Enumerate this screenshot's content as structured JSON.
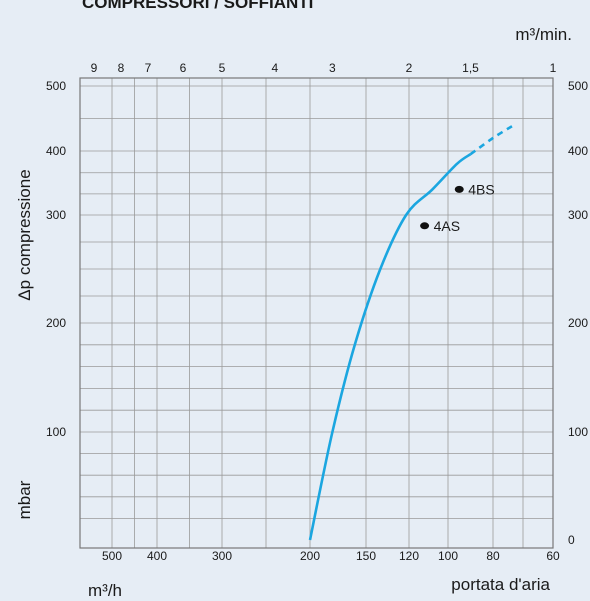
{
  "chart_data": {
    "type": "line",
    "title": "COMPRESSORI / SOFFIANTI",
    "ylabel": "Δp compressione",
    "yunit": "mbar",
    "xlabel": "portata d'aria",
    "x_bottom_unit": "m³/h",
    "x_top_unit": "m³/min.",
    "ylim": [
      0,
      550
    ],
    "left_y_ticks": [
      "500",
      "400",
      "300",
      "200",
      "100"
    ],
    "right_y_ticks": [
      "500",
      "400",
      "300",
      "200",
      "100",
      "0"
    ],
    "bottom_x_ticks": [
      "500",
      "400",
      "300",
      "200",
      "150",
      "120",
      "100",
      "80",
      "60"
    ],
    "top_x_ticks": [
      "9",
      "8",
      "7",
      "6",
      "5",
      "4",
      "3",
      "2",
      "1,5",
      "1"
    ],
    "grid": true,
    "curve_color": "#1ba6e0",
    "series": [
      {
        "values": [
          [
            200,
            0
          ],
          [
            180,
            100
          ],
          [
            160,
            180
          ],
          [
            140,
            250
          ],
          [
            122,
            300
          ],
          [
            108,
            340
          ],
          [
            96,
            380
          ],
          [
            90,
            395
          ],
          [
            80,
            420
          ],
          [
            73,
            440
          ]
        ]
      }
    ],
    "points": [
      {
        "label": "4AS",
        "x": 112,
        "y": 290
      },
      {
        "label": "4BS",
        "x": 95,
        "y": 340
      }
    ]
  }
}
